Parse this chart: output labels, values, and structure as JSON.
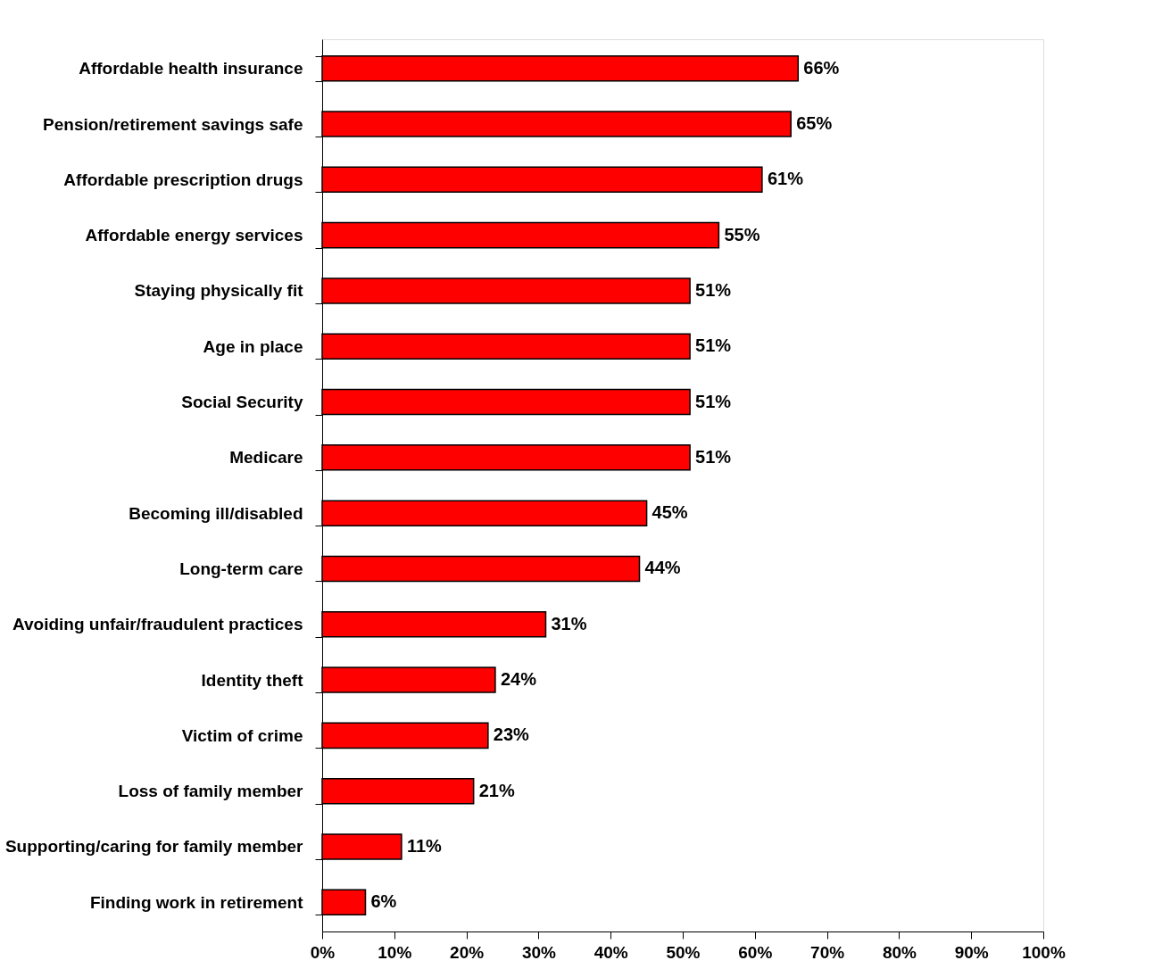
{
  "chart_data": {
    "type": "bar",
    "orientation": "horizontal",
    "categories": [
      "Affordable health insurance",
      "Pension/retirement savings safe",
      "Affordable prescription drugs",
      "Affordable energy services",
      "Staying physically fit",
      "Age in place",
      "Social Security",
      "Medicare",
      "Becoming ill/disabled",
      "Long-term care",
      "Avoiding unfair/fraudulent practices",
      "Identity theft",
      "Victim of crime",
      "Loss of family member",
      "Supporting/caring for family member",
      "Finding work in retirement"
    ],
    "values": [
      66,
      65,
      61,
      55,
      51,
      51,
      51,
      51,
      45,
      44,
      31,
      24,
      23,
      21,
      11,
      6
    ],
    "value_labels": [
      "66%",
      "65%",
      "61%",
      "55%",
      "51%",
      "51%",
      "51%",
      "51%",
      "45%",
      "44%",
      "31%",
      "24%",
      "23%",
      "21%",
      "11%",
      "6%"
    ],
    "color": "#ff0000",
    "xlim": [
      0,
      100
    ],
    "xticks": [
      {
        "value": 0,
        "label": "0%"
      },
      {
        "value": 10,
        "label": "10%"
      },
      {
        "value": 20,
        "label": "20%"
      },
      {
        "value": 30,
        "label": "30%"
      },
      {
        "value": 40,
        "label": "40%"
      },
      {
        "value": 50,
        "label": "50%"
      },
      {
        "value": 60,
        "label": "60%"
      },
      {
        "value": 70,
        "label": "70%"
      },
      {
        "value": 80,
        "label": "80%"
      },
      {
        "value": 90,
        "label": "90%"
      },
      {
        "value": 100,
        "label": "100%"
      }
    ],
    "grid": false
  }
}
